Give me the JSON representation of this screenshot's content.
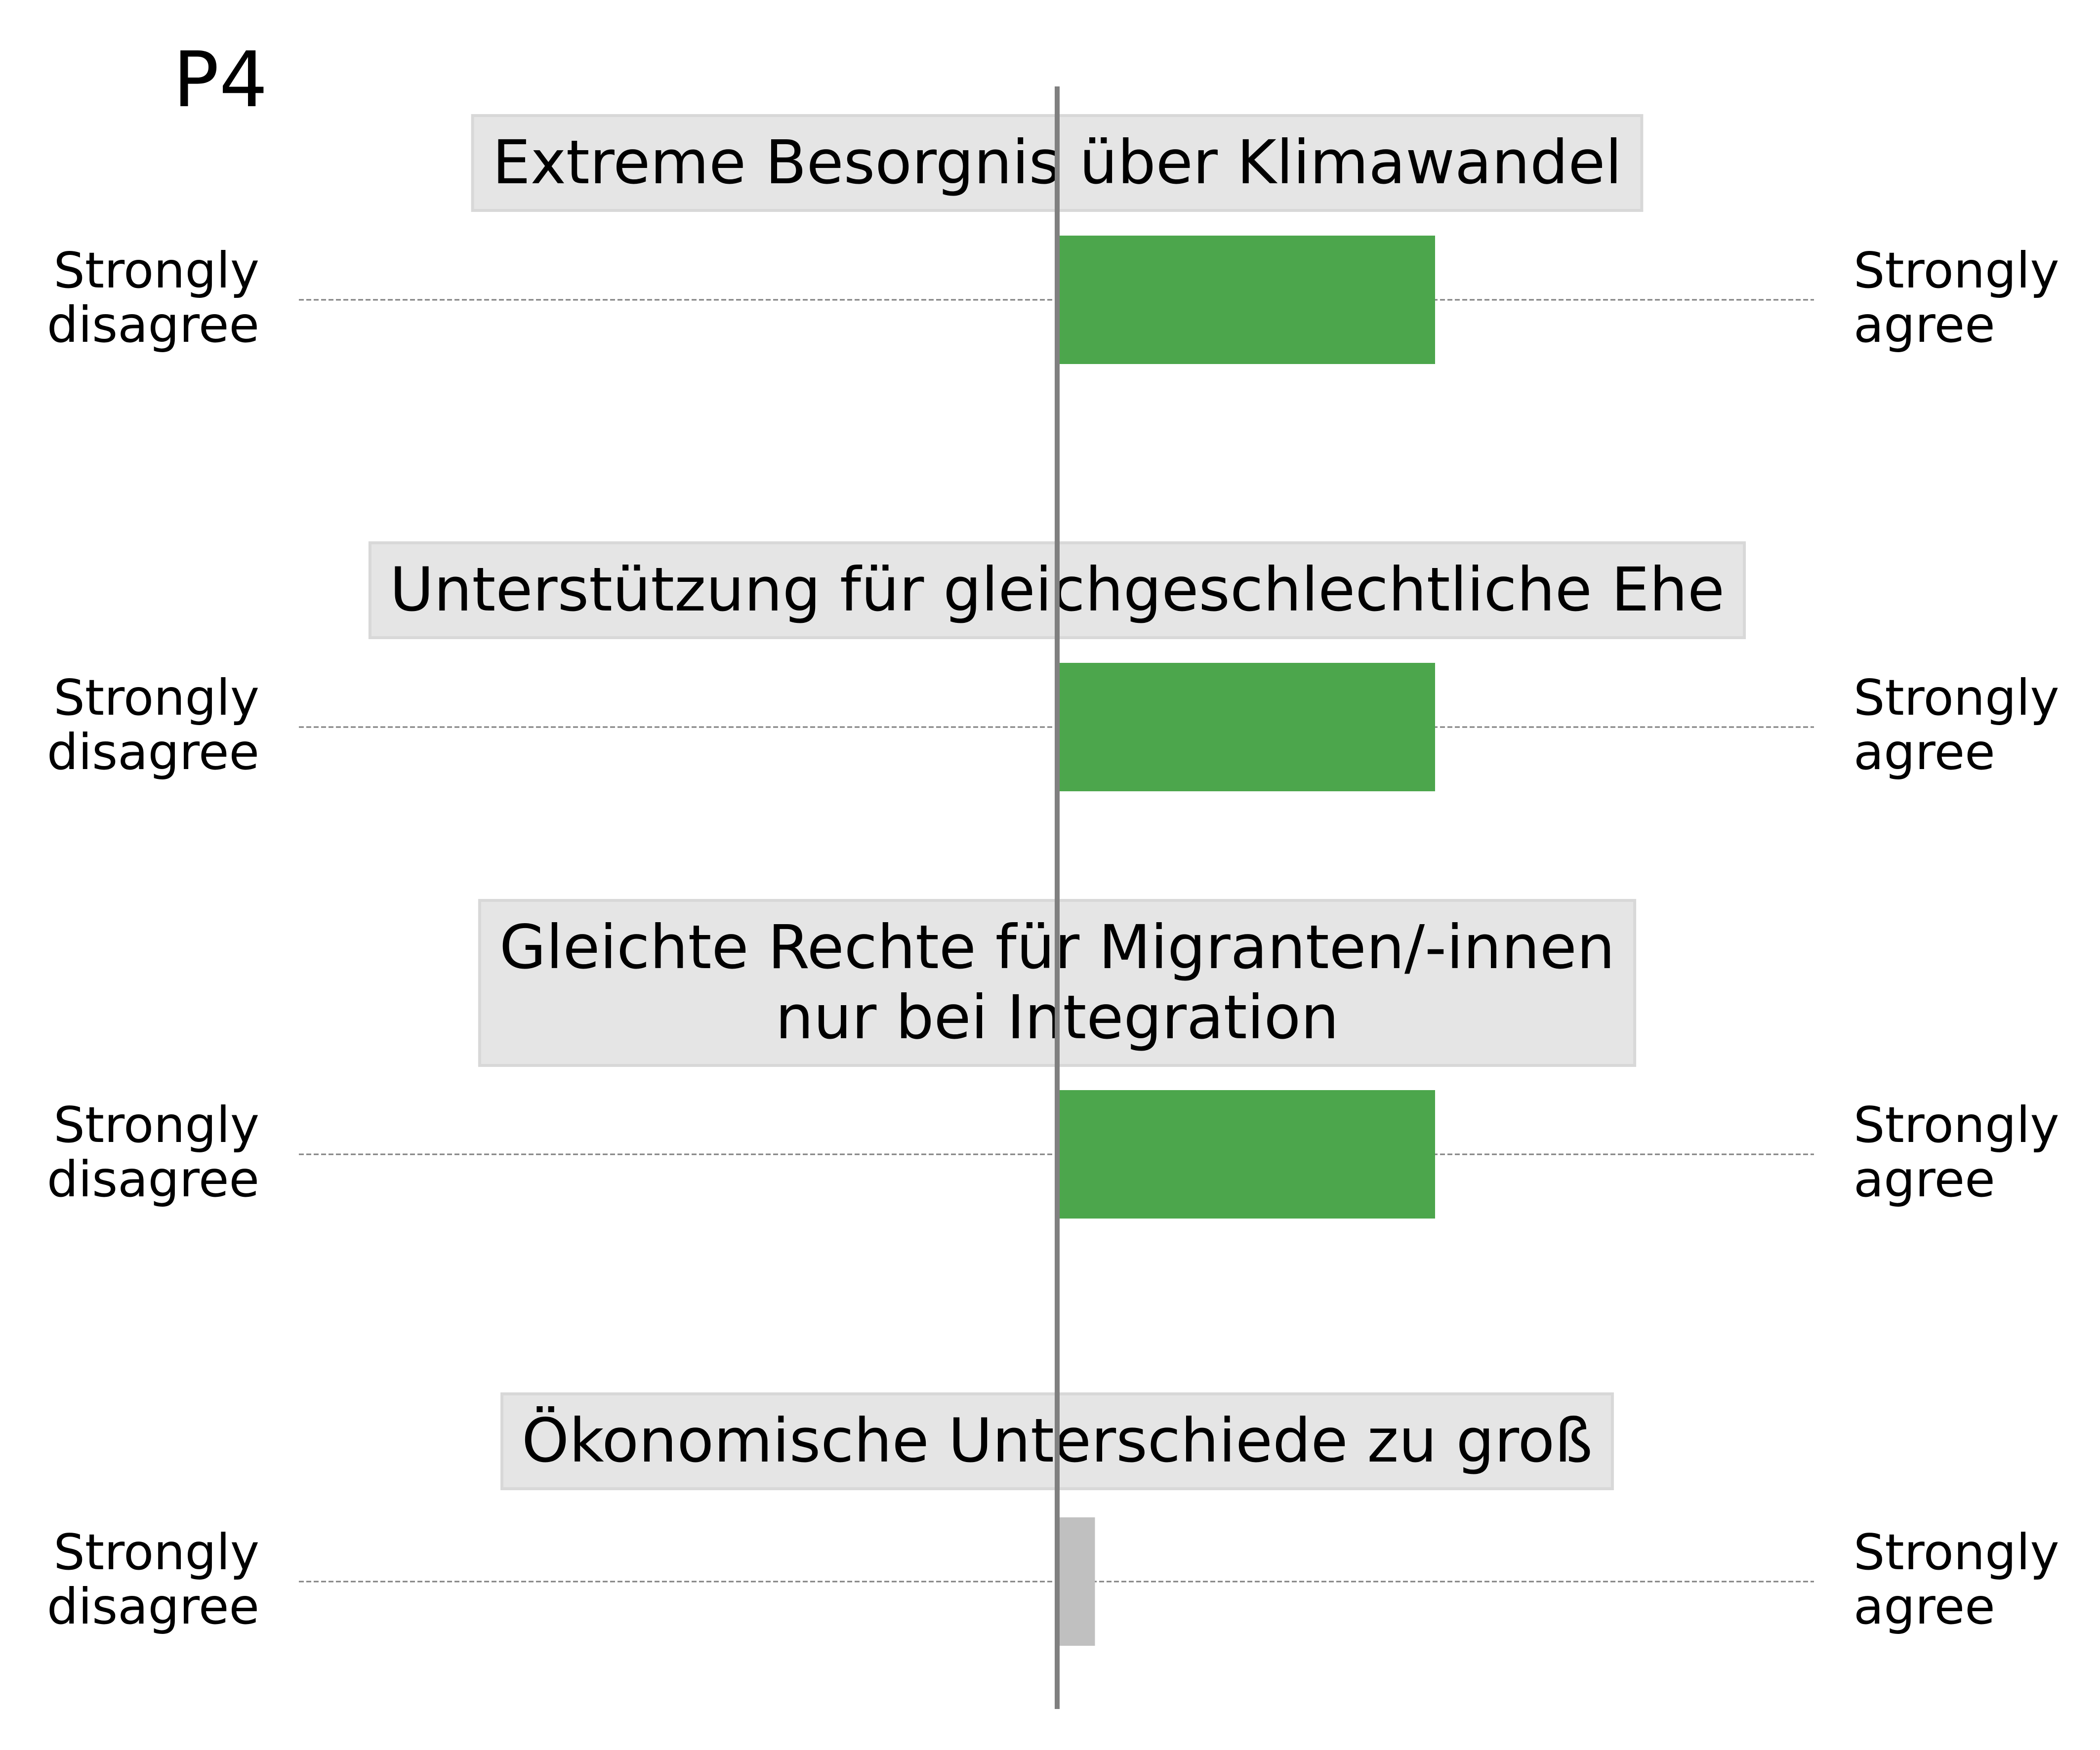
{
  "chart_data": {
    "type": "bar",
    "orientation": "horizontal",
    "panel_label": "P4",
    "scale": {
      "min": -1,
      "max": 1,
      "center": 0
    },
    "grid": false,
    "left_label": [
      "Strongly",
      "disagree"
    ],
    "right_label": [
      "Strongly",
      "agree"
    ],
    "categories": [
      [
        "Extreme Besorgnis über Klimawandel"
      ],
      [
        "Unterstützung für gleichgeschlechtliche Ehe"
      ],
      [
        "Gleichte Rechte für Migranten/-innen",
        "nur bei Integration"
      ],
      [
        "Ökonomische Unterschiede zu groß"
      ]
    ],
    "values": [
      0.5,
      0.5,
      0.5,
      0.05
    ],
    "colors": [
      "#4ca64c",
      "#4ca64c",
      "#4ca64c",
      "#c0c0c0"
    ],
    "title_box_color": "#e5e5e5",
    "center_line_color": "#808080"
  }
}
